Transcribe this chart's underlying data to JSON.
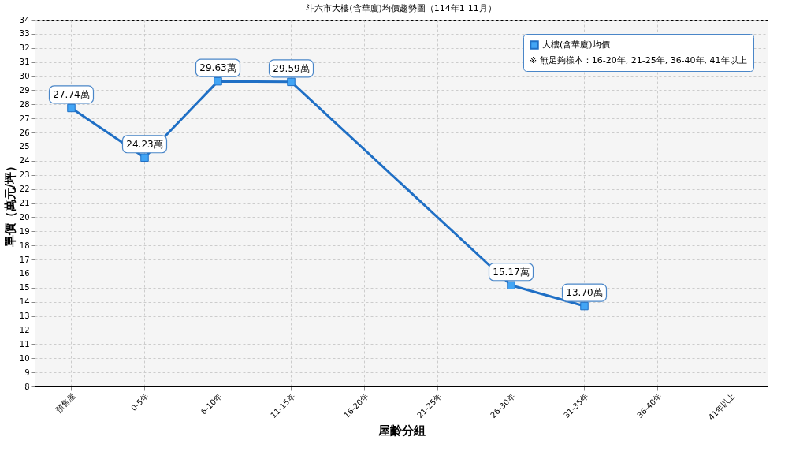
{
  "chart_data": {
    "type": "line",
    "title": "斗六市大樓(含華廈)均價趨勢圖（114年1-11月）",
    "xlabel": "屋齡分組",
    "ylabel": "單價（萬元/坪）",
    "categories": [
      "預售屋",
      "0-5年",
      "6-10年",
      "11-15年",
      "16-20年",
      "21-25年",
      "26-30年",
      "31-35年",
      "36-40年",
      "41年以上"
    ],
    "series": [
      {
        "name": "大樓(含華廈)均價",
        "color": "#1f6fc5",
        "values": [
          27.74,
          24.23,
          29.63,
          29.59,
          null,
          null,
          15.17,
          13.7,
          null,
          null
        ],
        "value_labels": [
          "27.74萬",
          "24.23萬",
          "29.63萬",
          "29.59萬",
          null,
          null,
          "15.17萬",
          "13.70萬",
          null,
          null
        ]
      }
    ],
    "annotations": [
      "※ 無足夠樣本：16-20年, 21-25年, 36-40年, 41年以上"
    ],
    "ylim": [
      8,
      34
    ],
    "yticks": [
      8,
      9,
      10,
      11,
      12,
      13,
      14,
      15,
      16,
      17,
      18,
      19,
      20,
      21,
      22,
      23,
      24,
      25,
      26,
      27,
      28,
      29,
      30,
      31,
      32,
      33,
      34
    ],
    "grid": true,
    "marker": "square",
    "line_style": "solid",
    "legend": "top right"
  }
}
